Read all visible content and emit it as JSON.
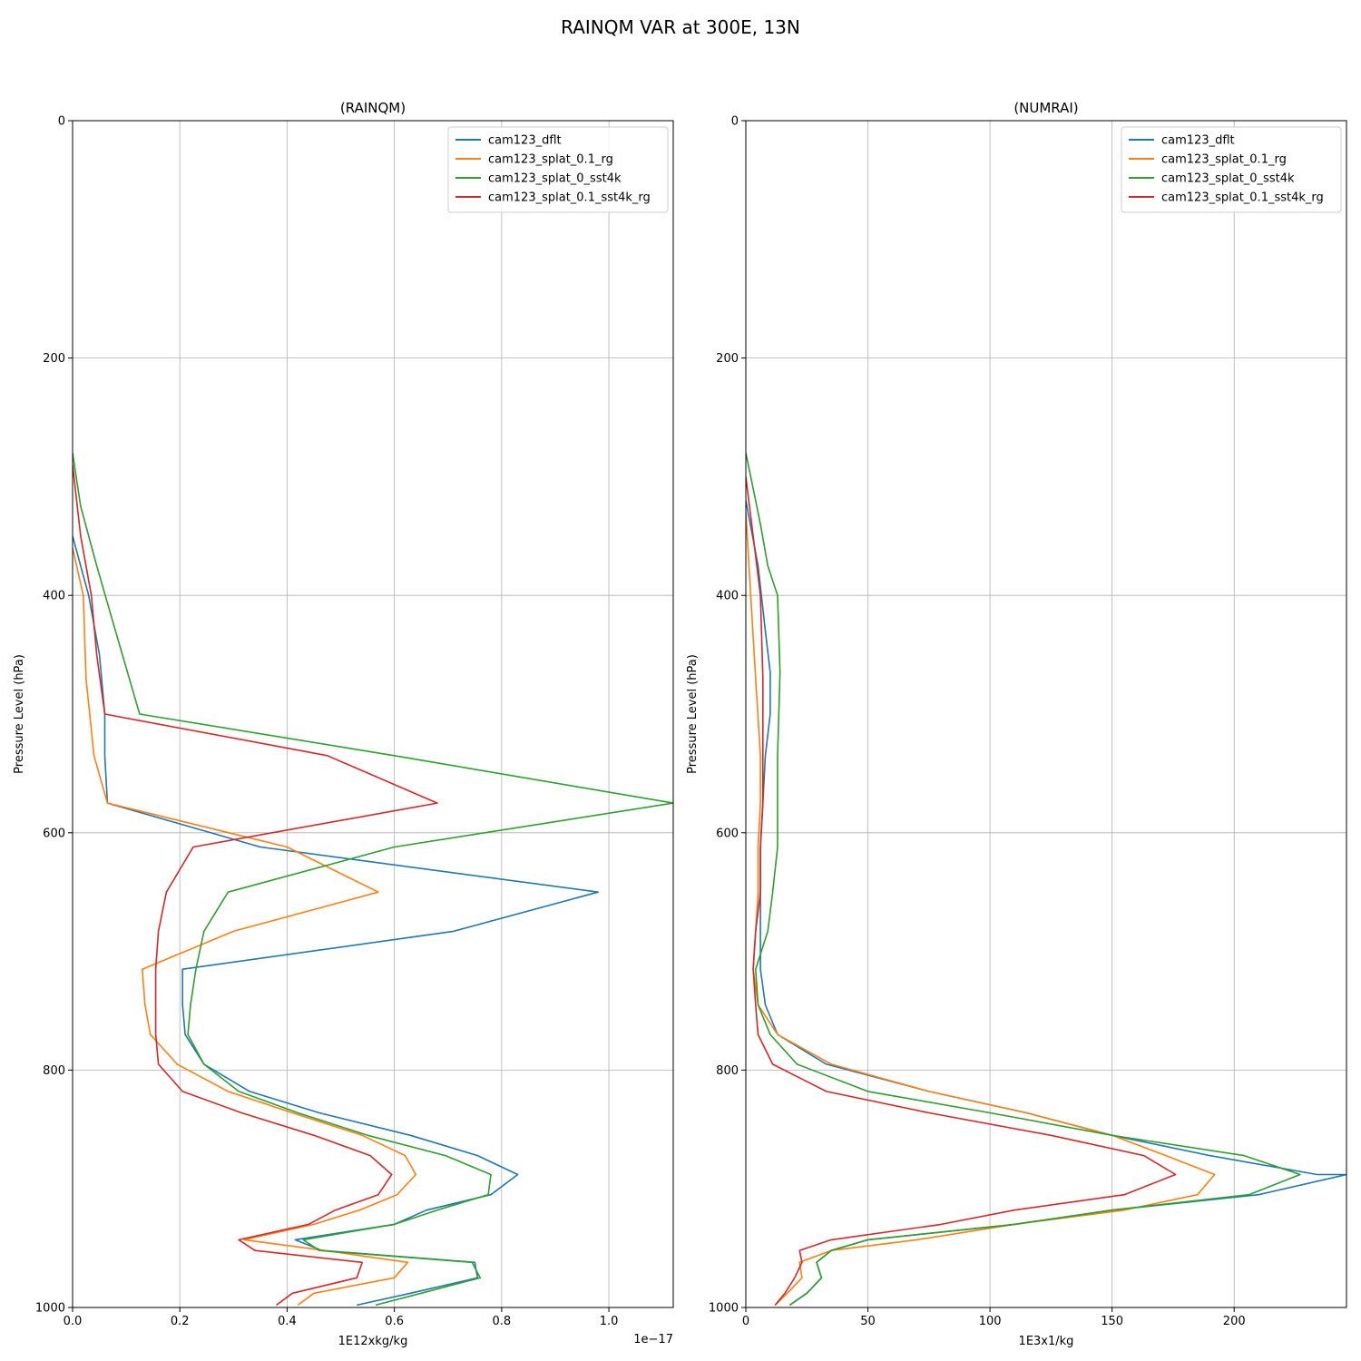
{
  "figure": {
    "suptitle": "RAINQM VAR at 300E, 13N"
  },
  "colors": {
    "cam123_dflt": "#1f77b4",
    "cam123_splat_0.1_rg": "#ff7f0e",
    "cam123_splat_0_sst4k": "#2ca02c",
    "cam123_splat_0.1_sst4k_rg": "#d62728"
  },
  "chart_data": [
    {
      "type": "line",
      "title": "(RAINQM)",
      "xlabel": "1E12xkg/kg",
      "ylabel": "Pressure Level (hPa)",
      "x_offset_text": "1e−17",
      "xlim": [
        0,
        1.12
      ],
      "ylim": [
        1000,
        0
      ],
      "xticks": [
        0.0,
        0.2,
        0.4,
        0.6,
        0.8,
        1.0
      ],
      "xtick_labels": [
        "0.0",
        "0.2",
        "0.4",
        "0.6",
        "0.8",
        "1.0"
      ],
      "yticks": [
        0,
        200,
        400,
        600,
        800,
        1000
      ],
      "ytick_labels": [
        "0",
        "200",
        "400",
        "600",
        "800",
        "1000"
      ],
      "grid": true,
      "legend": "top-right",
      "series": [
        {
          "name": "cam123_dflt",
          "points": [
            [
              0,
              350
            ],
            [
              0.03,
              400
            ],
            [
              0.05,
              450
            ],
            [
              0.06,
              500
            ],
            [
              0.06,
              535
            ],
            [
              0.065,
              575
            ],
            [
              0.35,
              612
            ],
            [
              0.98,
              650
            ],
            [
              0.71,
              683
            ],
            [
              0.205,
              715
            ],
            [
              0.205,
              745
            ],
            [
              0.21,
              770
            ],
            [
              0.245,
              795
            ],
            [
              0.33,
              818
            ],
            [
              0.46,
              836
            ],
            [
              0.63,
              855
            ],
            [
              0.755,
              872
            ],
            [
              0.83,
              888
            ],
            [
              0.78,
              905
            ],
            [
              0.66,
              918
            ],
            [
              0.6,
              930
            ],
            [
              0.415,
              943
            ],
            [
              0.465,
              952
            ],
            [
              0.75,
              962
            ],
            [
              0.755,
              975
            ],
            [
              0.63,
              988
            ],
            [
              0.53,
              998
            ]
          ]
        },
        {
          "name": "cam123_splat_0.1_rg",
          "points": [
            [
              0,
              360
            ],
            [
              0.02,
              400
            ],
            [
              0.025,
              470
            ],
            [
              0.04,
              535
            ],
            [
              0.065,
              575
            ],
            [
              0.4,
              612
            ],
            [
              0.57,
              650
            ],
            [
              0.3,
              683
            ],
            [
              0.13,
              715
            ],
            [
              0.135,
              745
            ],
            [
              0.145,
              770
            ],
            [
              0.195,
              795
            ],
            [
              0.29,
              818
            ],
            [
              0.41,
              836
            ],
            [
              0.54,
              855
            ],
            [
              0.62,
              872
            ],
            [
              0.64,
              888
            ],
            [
              0.605,
              905
            ],
            [
              0.535,
              918
            ],
            [
              0.45,
              930
            ],
            [
              0.32,
              943
            ],
            [
              0.47,
              952
            ],
            [
              0.625,
              962
            ],
            [
              0.6,
              975
            ],
            [
              0.45,
              988
            ],
            [
              0.42,
              998
            ]
          ]
        },
        {
          "name": "cam123_splat_0_sst4k",
          "points": [
            [
              0,
              280
            ],
            [
              0.015,
              325
            ],
            [
              0.045,
              375
            ],
            [
              0.08,
              430
            ],
            [
              0.125,
              500
            ],
            [
              0.6,
              535
            ],
            [
              1.12,
              575
            ],
            [
              0.6,
              612
            ],
            [
              0.29,
              650
            ],
            [
              0.245,
              683
            ],
            [
              0.23,
              715
            ],
            [
              0.22,
              745
            ],
            [
              0.215,
              770
            ],
            [
              0.245,
              795
            ],
            [
              0.31,
              818
            ],
            [
              0.42,
              836
            ],
            [
              0.55,
              855
            ],
            [
              0.695,
              872
            ],
            [
              0.78,
              888
            ],
            [
              0.775,
              905
            ],
            [
              0.68,
              918
            ],
            [
              0.6,
              930
            ],
            [
              0.43,
              943
            ],
            [
              0.46,
              952
            ],
            [
              0.745,
              962
            ],
            [
              0.76,
              975
            ],
            [
              0.65,
              988
            ],
            [
              0.565,
              998
            ]
          ]
        },
        {
          "name": "cam123_splat_0.1_sst4k_rg",
          "points": [
            [
              0,
              290
            ],
            [
              0.015,
              350
            ],
            [
              0.035,
              400
            ],
            [
              0.045,
              450
            ],
            [
              0.06,
              500
            ],
            [
              0.475,
              535
            ],
            [
              0.68,
              575
            ],
            [
              0.225,
              612
            ],
            [
              0.175,
              650
            ],
            [
              0.16,
              683
            ],
            [
              0.155,
              715
            ],
            [
              0.155,
              745
            ],
            [
              0.155,
              770
            ],
            [
              0.16,
              795
            ],
            [
              0.205,
              818
            ],
            [
              0.315,
              836
            ],
            [
              0.45,
              855
            ],
            [
              0.555,
              872
            ],
            [
              0.595,
              888
            ],
            [
              0.57,
              905
            ],
            [
              0.49,
              918
            ],
            [
              0.44,
              930
            ],
            [
              0.31,
              943
            ],
            [
              0.34,
              952
            ],
            [
              0.54,
              962
            ],
            [
              0.53,
              975
            ],
            [
              0.41,
              988
            ],
            [
              0.38,
              998
            ]
          ]
        }
      ]
    },
    {
      "type": "line",
      "title": "(NUMRAI)",
      "xlabel": "1E3x1/kg",
      "ylabel": "Pressure Level (hPa)",
      "xlim": [
        0,
        246
      ],
      "ylim": [
        1000,
        0
      ],
      "xticks": [
        0,
        50,
        100,
        150,
        200
      ],
      "xtick_labels": [
        "0",
        "50",
        "100",
        "150",
        "200"
      ],
      "yticks": [
        0,
        200,
        400,
        600,
        800,
        1000
      ],
      "ytick_labels": [
        "0",
        "200",
        "400",
        "600",
        "800",
        "1000"
      ],
      "grid": true,
      "legend": "top-right",
      "series": [
        {
          "name": "cam123_dflt",
          "points": [
            [
              0,
              320
            ],
            [
              5,
              375
            ],
            [
              8,
              430
            ],
            [
              10,
              465
            ],
            [
              10,
              500
            ],
            [
              8,
              535
            ],
            [
              7,
              575
            ],
            [
              6,
              612
            ],
            [
              6,
              650
            ],
            [
              6,
              683
            ],
            [
              6,
              715
            ],
            [
              8,
              745
            ],
            [
              13,
              770
            ],
            [
              33,
              795
            ],
            [
              75,
              818
            ],
            [
              115,
              836
            ],
            [
              150,
              855
            ],
            [
              190,
              872
            ],
            [
              234,
              888
            ],
            [
              246,
              888
            ],
            [
              210,
              905
            ],
            [
              150,
              918
            ],
            [
              110,
              930
            ],
            [
              50,
              943
            ],
            [
              35,
              952
            ],
            [
              29,
              962
            ],
            [
              31,
              975
            ],
            [
              25,
              988
            ],
            [
              18,
              998
            ]
          ]
        },
        {
          "name": "cam123_splat_0.1_rg",
          "points": [
            [
              0,
              330
            ],
            [
              2,
              400
            ],
            [
              4,
              470
            ],
            [
              6,
              535
            ],
            [
              6,
              575
            ],
            [
              5,
              612
            ],
            [
              5,
              650
            ],
            [
              4,
              683
            ],
            [
              3,
              715
            ],
            [
              5,
              745
            ],
            [
              13,
              770
            ],
            [
              35,
              795
            ],
            [
              75,
              818
            ],
            [
              115,
              836
            ],
            [
              150,
              855
            ],
            [
              172,
              872
            ],
            [
              192,
              888
            ],
            [
              185,
              905
            ],
            [
              155,
              918
            ],
            [
              110,
              930
            ],
            [
              70,
              943
            ],
            [
              35,
              952
            ],
            [
              22,
              962
            ],
            [
              23,
              975
            ],
            [
              17,
              988
            ],
            [
              12,
              998
            ]
          ]
        },
        {
          "name": "cam123_splat_0_sst4k",
          "points": [
            [
              0,
              280
            ],
            [
              2,
              300
            ],
            [
              6,
              340
            ],
            [
              9,
              375
            ],
            [
              13,
              400
            ],
            [
              14,
              465
            ],
            [
              13,
              535
            ],
            [
              13,
              575
            ],
            [
              13,
              612
            ],
            [
              11,
              650
            ],
            [
              9,
              683
            ],
            [
              4,
              715
            ],
            [
              5,
              745
            ],
            [
              10,
              770
            ],
            [
              21,
              795
            ],
            [
              50,
              818
            ],
            [
              100,
              836
            ],
            [
              150,
              855
            ],
            [
              204,
              872
            ],
            [
              227,
              888
            ],
            [
              206,
              905
            ],
            [
              150,
              918
            ],
            [
              110,
              930
            ],
            [
              50,
              943
            ],
            [
              35,
              952
            ],
            [
              29,
              962
            ],
            [
              31,
              975
            ],
            [
              25,
              988
            ],
            [
              18,
              998
            ]
          ]
        },
        {
          "name": "cam123_splat_0.1_sst4k_rg",
          "points": [
            [
              0,
              300
            ],
            [
              3,
              350
            ],
            [
              6,
              400
            ],
            [
              7,
              470
            ],
            [
              7,
              535
            ],
            [
              7,
              575
            ],
            [
              6,
              612
            ],
            [
              6,
              650
            ],
            [
              4,
              683
            ],
            [
              3,
              715
            ],
            [
              4,
              745
            ],
            [
              5,
              770
            ],
            [
              11,
              795
            ],
            [
              33,
              818
            ],
            [
              75,
              836
            ],
            [
              125,
              855
            ],
            [
              163,
              872
            ],
            [
              176,
              888
            ],
            [
              155,
              905
            ],
            [
              110,
              918
            ],
            [
              80,
              930
            ],
            [
              35,
              943
            ],
            [
              22,
              952
            ],
            [
              23,
              962
            ],
            [
              20,
              975
            ],
            [
              16,
              988
            ],
            [
              12,
              998
            ]
          ]
        }
      ]
    }
  ]
}
